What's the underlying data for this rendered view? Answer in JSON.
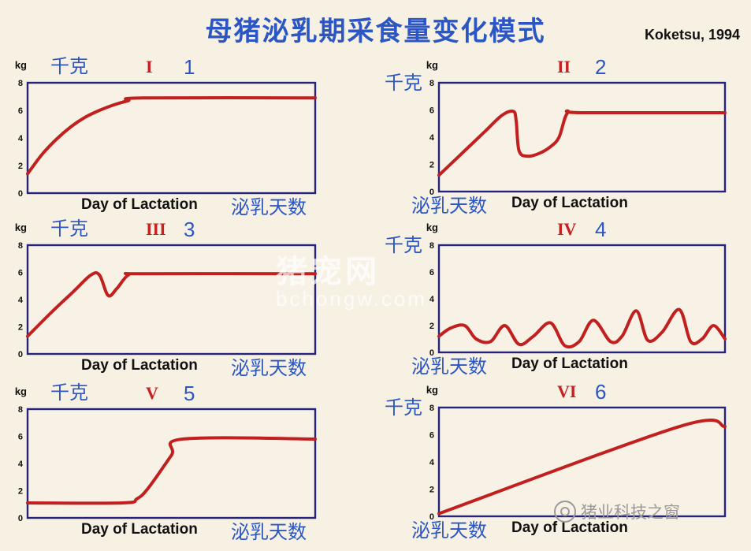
{
  "title": "母猪泌乳期采食量变化模式",
  "source": "Koketsu, 1994",
  "watermark": {
    "line1": "猪宠网",
    "line2": "bchongw.com"
  },
  "brand": "猪业科技之窗",
  "colors": {
    "curve": "#c21f1f",
    "frame": "#26237a",
    "chinese_text": "#2b56c4",
    "roman": "#c62020",
    "background": "#f7f1e4"
  },
  "chart_data": [
    {
      "type": "line",
      "pattern": "1",
      "roman": "I",
      "unit": "kg",
      "ylabel_zh": "千克",
      "xlabel": "Day of Lactation",
      "xlabel_zh": "泌乳天数",
      "yticks": [
        "0",
        "2",
        "4",
        "6",
        "8"
      ],
      "ylim": [
        0,
        8
      ],
      "xlim": [
        0,
        1
      ],
      "x": [
        0,
        0.05,
        0.1,
        0.15,
        0.2,
        0.25,
        0.3,
        0.35,
        0.4,
        1.0
      ],
      "y": [
        1.4,
        2.8,
        3.9,
        4.8,
        5.5,
        6.0,
        6.4,
        6.7,
        6.9,
        6.9
      ]
    },
    {
      "type": "line",
      "pattern": "2",
      "roman": "II",
      "unit": "kg",
      "ylabel_zh": "千克",
      "xlabel": "Day of Lactation",
      "xlabel_zh": "泌乳天数",
      "yticks": [
        "0",
        "2",
        "4",
        "6",
        "8"
      ],
      "ylim": [
        0,
        8
      ],
      "xlim": [
        0,
        1
      ],
      "x": [
        0,
        0.08,
        0.16,
        0.22,
        0.26,
        0.27,
        0.28,
        0.31,
        0.35,
        0.39,
        0.42,
        0.45,
        0.5,
        1.0
      ],
      "y": [
        1.2,
        2.8,
        4.4,
        5.6,
        5.9,
        5.2,
        3.0,
        2.6,
        2.8,
        3.3,
        4.0,
        5.8,
        5.8,
        5.8
      ]
    },
    {
      "type": "line",
      "pattern": "3",
      "roman": "III",
      "unit": "kg",
      "ylabel_zh": "千克",
      "xlabel": "Day of Lactation",
      "xlabel_zh": "泌乳天数",
      "yticks": [
        "0",
        "2",
        "4",
        "6",
        "8"
      ],
      "ylim": [
        0,
        8
      ],
      "xlim": [
        0,
        1
      ],
      "x": [
        0,
        0.08,
        0.16,
        0.22,
        0.25,
        0.28,
        0.31,
        0.35,
        0.4,
        1.0
      ],
      "y": [
        1.3,
        3.0,
        4.6,
        5.8,
        5.8,
        4.3,
        4.8,
        5.8,
        5.9,
        5.9
      ]
    },
    {
      "type": "line",
      "pattern": "4",
      "roman": "IV",
      "unit": "kg",
      "ylabel_zh": "千克",
      "xlabel": "Day of Lactation",
      "xlabel_zh": "泌乳天数",
      "yticks": [
        "0",
        "2",
        "4",
        "6",
        "8"
      ],
      "ylim": [
        0,
        8
      ],
      "xlim": [
        0,
        1
      ],
      "x": [
        0,
        0.04,
        0.09,
        0.13,
        0.18,
        0.23,
        0.28,
        0.33,
        0.39,
        0.44,
        0.49,
        0.54,
        0.6,
        0.64,
        0.69,
        0.73,
        0.78,
        0.84,
        0.88,
        0.92,
        0.96,
        1.0
      ],
      "y": [
        1.2,
        1.8,
        2.0,
        1.0,
        0.8,
        2.0,
        0.6,
        1.2,
        2.2,
        0.5,
        0.8,
        2.4,
        0.8,
        1.2,
        3.1,
        0.9,
        1.5,
        3.2,
        0.8,
        1.0,
        2.0,
        1.0
      ]
    },
    {
      "type": "line",
      "pattern": "5",
      "roman": "V",
      "unit": "kg",
      "ylabel_zh": "千克",
      "xlabel": "Day of Lactation",
      "xlabel_zh": "泌乳天数",
      "yticks": [
        "0",
        "2",
        "4",
        "6",
        "8"
      ],
      "ylim": [
        0,
        8
      ],
      "xlim": [
        0,
        1
      ],
      "x": [
        0,
        0.33,
        0.38,
        0.42,
        0.5,
        0.54,
        1.0
      ],
      "y": [
        1.1,
        1.1,
        1.4,
        2.2,
        4.6,
        5.8,
        5.8
      ]
    },
    {
      "type": "line",
      "pattern": "6",
      "roman": "VI",
      "unit": "kg",
      "ylabel_zh": "千克",
      "xlabel": "Day of Lactation",
      "xlabel_zh": "泌乳天数",
      "yticks": [
        "0",
        "2",
        "4",
        "6",
        "8"
      ],
      "ylim": [
        0,
        8
      ],
      "xlim": [
        0,
        1
      ],
      "x": [
        0,
        0.84,
        1.0
      ],
      "y": [
        0.2,
        6.6,
        6.6
      ]
    }
  ]
}
